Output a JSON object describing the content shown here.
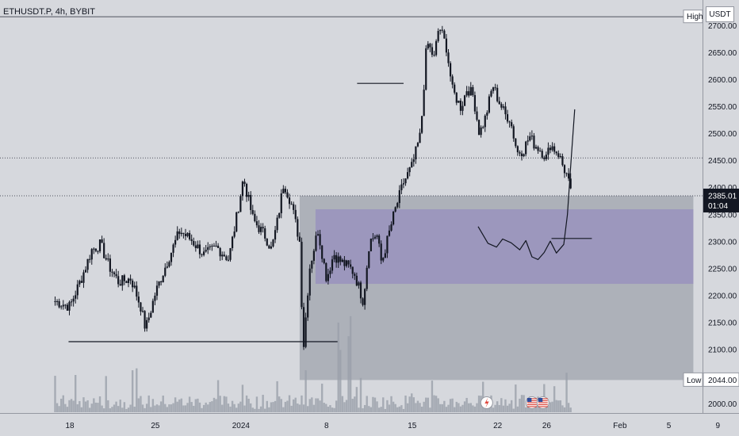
{
  "header": {
    "symbol_title": "ETHUSDT.P, 4h, BYBIT",
    "currency_button": "USDT"
  },
  "colors": {
    "background": "#d6d8dd",
    "candle": "#131722",
    "volume": "#9aa0aa",
    "zone_gray": "#a9adb5",
    "zone_purple": "#9b96bd",
    "price_tag": "#131722"
  },
  "chart_data": {
    "type": "candlestick",
    "y_axis_ticks": [
      2000,
      2050,
      2100,
      2150,
      2200,
      2250,
      2300,
      2350,
      2400,
      2450,
      2500,
      2550,
      2600,
      2650,
      2700
    ],
    "y_tick_labels": [
      "2000.00",
      "2050.00",
      "2100.00",
      "2150.00",
      "2200.00",
      "2250.00",
      "2300.00",
      "2350.00",
      "2400.00",
      "2450.00",
      "2500.00",
      "2550.00",
      "2600.00",
      "2650.00",
      "2700.00"
    ],
    "ylim": [
      1980,
      2740
    ],
    "x_axis_labels": [
      "18",
      "25",
      "2024",
      "8",
      "15",
      "22",
      "26",
      "Feb",
      "5",
      "9"
    ],
    "x_label_days": [
      0,
      7,
      14,
      21,
      28,
      35,
      39,
      45,
      49,
      53
    ],
    "high_marker": {
      "label": "High",
      "value": 2717
    },
    "low_marker": {
      "label": "Low",
      "value": 2044.0,
      "text": "2044.00"
    },
    "last_price": {
      "value": 2385.01,
      "text": "2385.01",
      "countdown": "01:04"
    },
    "dotted_levels": [
      2385.01,
      2455
    ],
    "zones": [
      {
        "name": "gray-demand-zone",
        "x_start_day": 18.8,
        "x_end_day": 51.0,
        "y_top": 2385,
        "y_bottom": 2044
      },
      {
        "name": "purple-demand-zone",
        "x_start_day": 20.1,
        "x_end_day": 51.0,
        "y_top": 2360,
        "y_bottom": 2222
      }
    ],
    "horizontal_lines": [
      {
        "name": "low-support-line",
        "x_start_day": -0.1,
        "x_end_day": 21.9,
        "y": 2115
      },
      {
        "name": "peak-resistance-line",
        "x_start_day": 23.5,
        "x_end_day": 27.3,
        "y": 2593
      }
    ],
    "drawing_path": [
      [
        33.4,
        2328
      ],
      [
        34.2,
        2297
      ],
      [
        34.9,
        2290
      ],
      [
        35.4,
        2305
      ],
      [
        36.1,
        2298
      ],
      [
        36.8,
        2285
      ],
      [
        37.3,
        2302
      ],
      [
        37.8,
        2272
      ],
      [
        38.3,
        2267
      ],
      [
        38.8,
        2280
      ],
      [
        39.3,
        2301
      ],
      [
        39.8,
        2279
      ],
      [
        40.4,
        2295
      ],
      [
        40.7,
        2350
      ],
      [
        41.0,
        2450
      ],
      [
        41.3,
        2545
      ]
    ],
    "drawing_mark": {
      "x_start_day": 39.4,
      "x_end_day": 42.7,
      "y": 2306
    },
    "keypoints": [
      [
        -1.2,
        2190
      ],
      [
        0,
        2180
      ],
      [
        1,
        2235
      ],
      [
        1.8,
        2285
      ],
      [
        2.5,
        2295
      ],
      [
        3.2,
        2255
      ],
      [
        4,
        2225
      ],
      [
        5,
        2232
      ],
      [
        5.8,
        2180
      ],
      [
        6.2,
        2138
      ],
      [
        7,
        2205
      ],
      [
        8,
        2265
      ],
      [
        9,
        2320
      ],
      [
        10,
        2302
      ],
      [
        11,
        2275
      ],
      [
        12,
        2290
      ],
      [
        13,
        2268
      ],
      [
        13.6,
        2340
      ],
      [
        14.2,
        2418
      ],
      [
        15,
        2340
      ],
      [
        16,
        2310
      ],
      [
        16.5,
        2285
      ],
      [
        17,
        2340
      ],
      [
        17.5,
        2410
      ],
      [
        18.1,
        2372
      ],
      [
        18.8,
        2300
      ],
      [
        19.1,
        2100
      ],
      [
        19.6,
        2250
      ],
      [
        20.3,
        2322
      ],
      [
        21,
        2232
      ],
      [
        21.6,
        2278
      ],
      [
        22,
        2266
      ],
      [
        23,
        2250
      ],
      [
        23.3,
        2240
      ],
      [
        24,
        2190
      ],
      [
        24.5,
        2300
      ],
      [
        25.1,
        2315
      ],
      [
        25.5,
        2260
      ],
      [
        26,
        2305
      ],
      [
        26.5,
        2350
      ],
      [
        27.3,
        2410
      ],
      [
        28,
        2440
      ],
      [
        28.7,
        2500
      ],
      [
        29.2,
        2670
      ],
      [
        29.8,
        2640
      ],
      [
        30.2,
        2700
      ],
      [
        30.8,
        2660
      ],
      [
        31.3,
        2580
      ],
      [
        32,
        2548
      ],
      [
        32.5,
        2585
      ],
      [
        33,
        2570
      ],
      [
        33.5,
        2500
      ],
      [
        34,
        2530
      ],
      [
        34.6,
        2590
      ],
      [
        35,
        2565
      ],
      [
        35.6,
        2535
      ],
      [
        36,
        2528
      ],
      [
        36.6,
        2465
      ],
      [
        37.1,
        2470
      ],
      [
        37.6,
        2495
      ],
      [
        38,
        2480
      ],
      [
        38.5,
        2470
      ],
      [
        39,
        2455
      ],
      [
        39.3,
        2480
      ],
      [
        40,
        2462
      ],
      [
        40.3,
        2442
      ],
      [
        40.7,
        2420
      ],
      [
        41,
        2385
      ]
    ],
    "volume_range": [
      0,
      30
    ],
    "volume_notes": "volume bars drawn along bottom of pane",
    "event_icons": [
      "lightning-icon",
      "us-flag-icon",
      "us-flag-icon"
    ]
  }
}
